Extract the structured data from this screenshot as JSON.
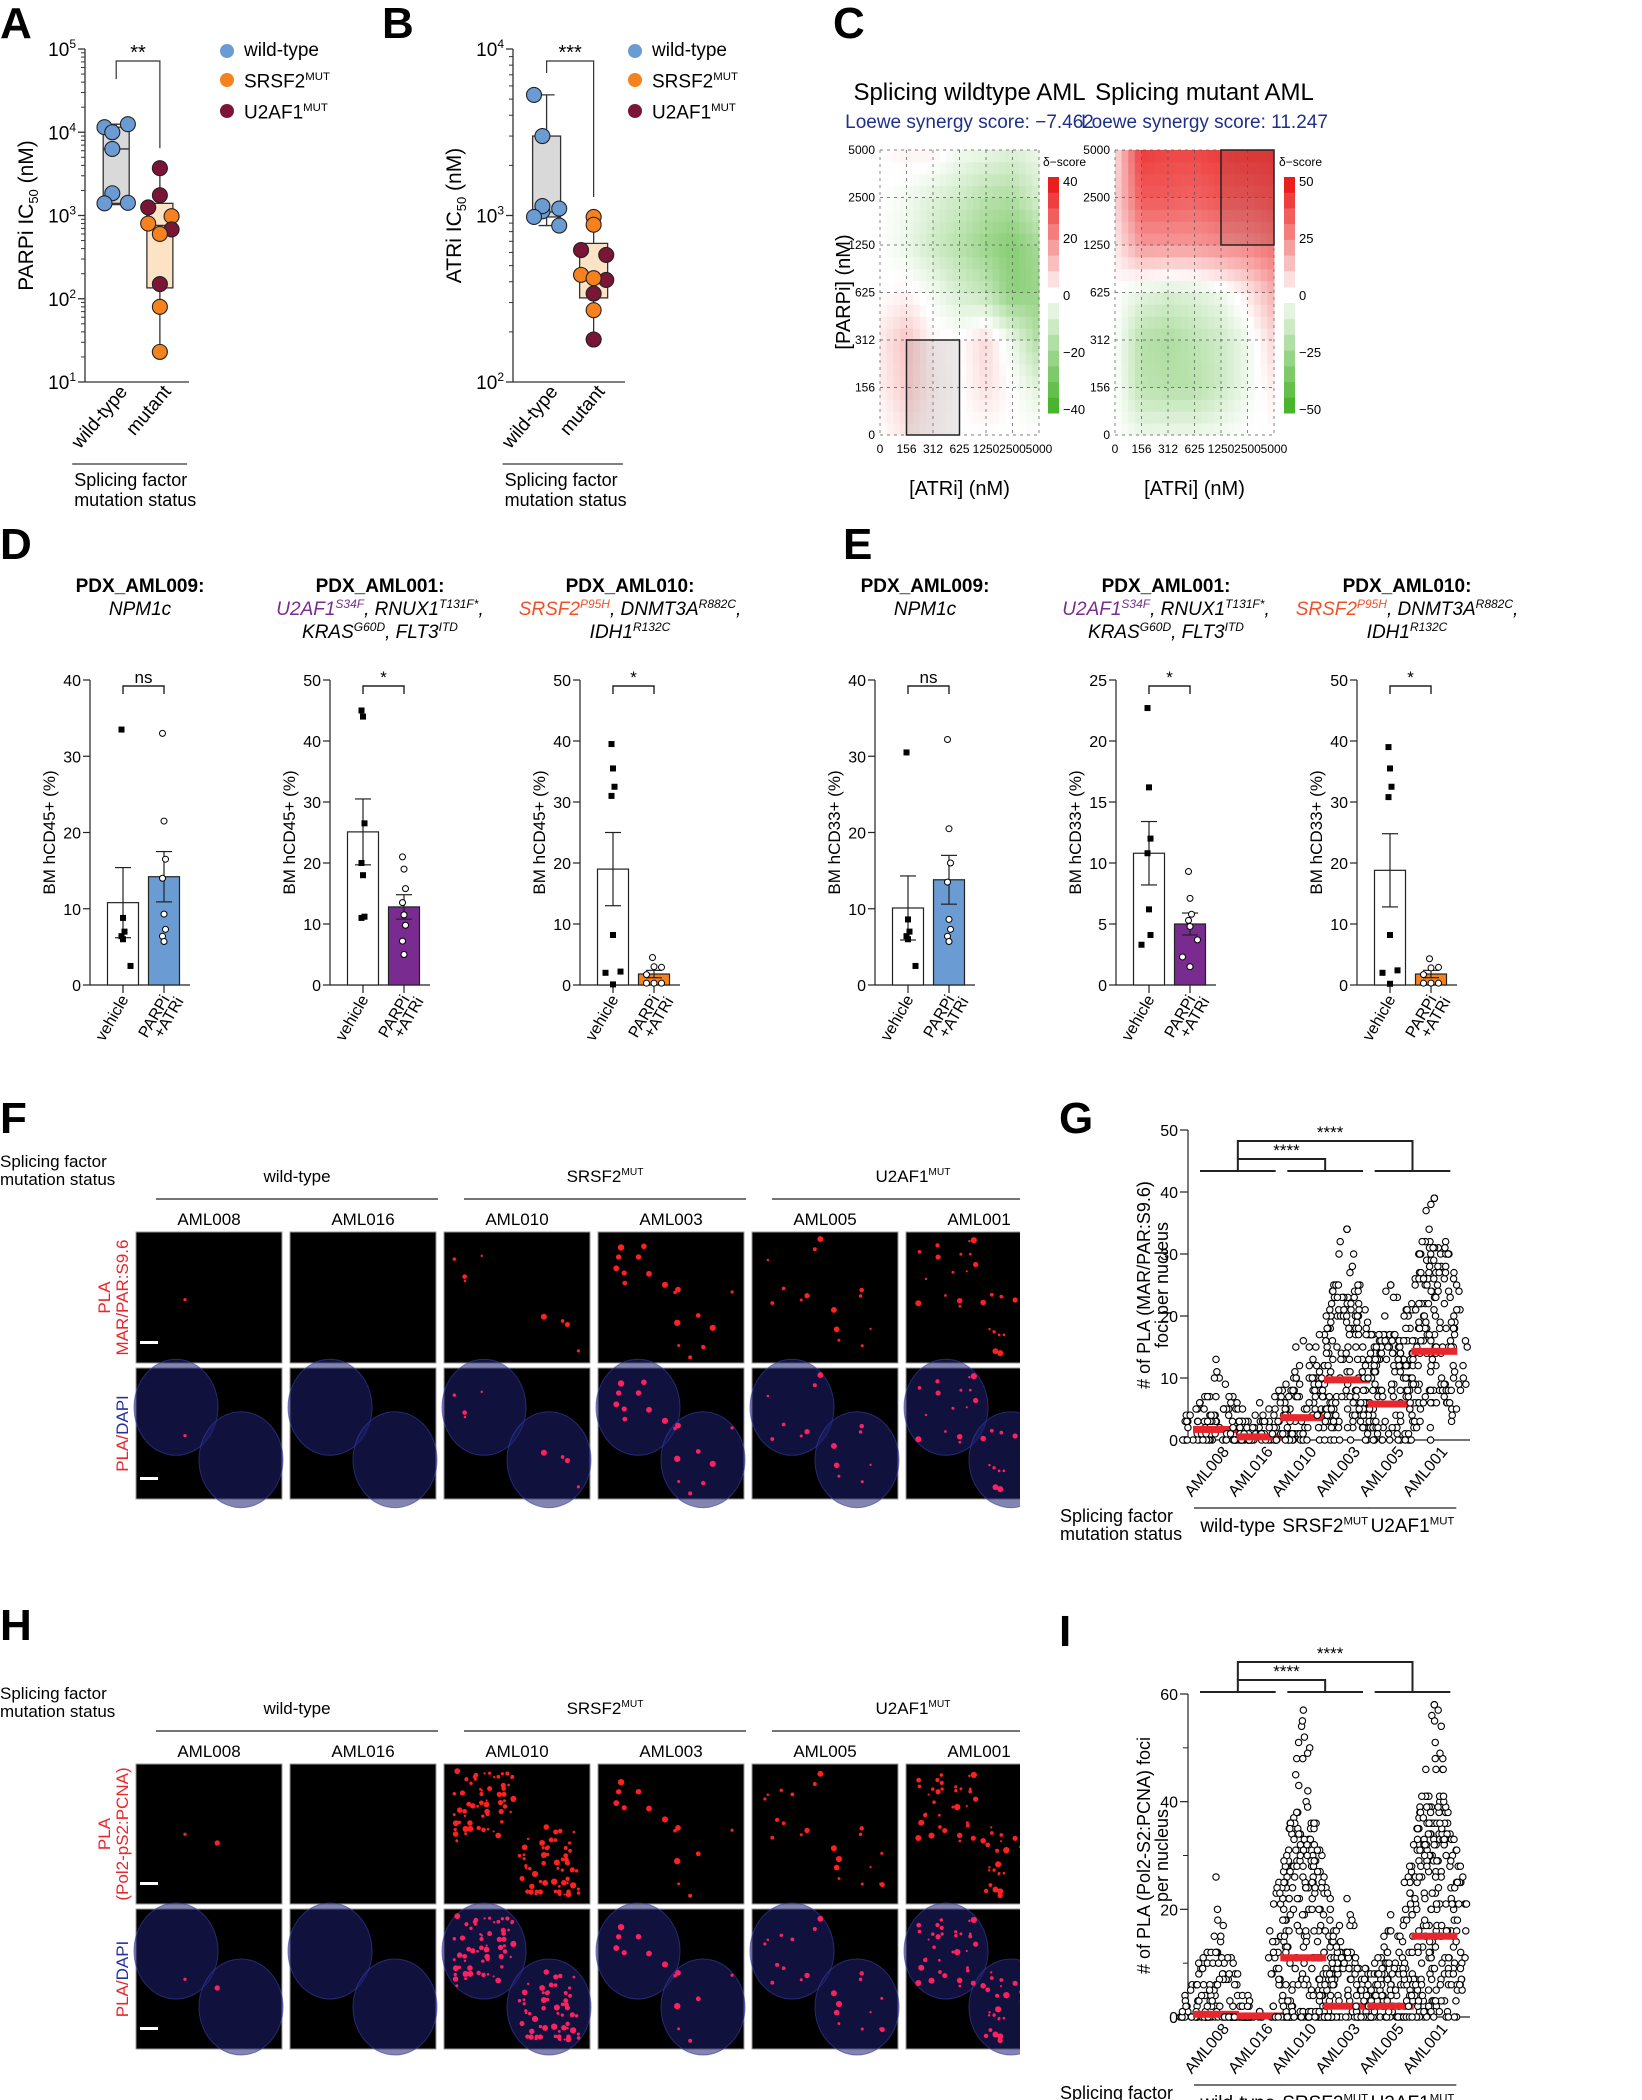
{
  "panels": {
    "A": "A",
    "B": "B",
    "C": "C",
    "D": "D",
    "E": "E",
    "F": "F",
    "G": "G",
    "H": "H",
    "I": "I"
  },
  "legend": {
    "items": [
      {
        "label": "wild-type",
        "sup": "",
        "color": "#6a9bd3"
      },
      {
        "label": "SRSF2",
        "sup": "MUT",
        "color": "#f5821f"
      },
      {
        "label": "U2AF1",
        "sup": "MUT",
        "color": "#7b1535"
      }
    ]
  },
  "common": {
    "splicing_status_line1": "Splicing factor",
    "splicing_status_line2": "mutation status",
    "wild_type": "wild-type",
    "mutant": "mutant",
    "srsf2": "SRSF2",
    "u2af1": "U2AF1",
    "mut_sup": "MUT",
    "vehicle": "vehicle",
    "parpi": "PARPi",
    "atri": "+ATRi"
  },
  "chart_data": [
    {
      "id": "A",
      "type": "box",
      "ylabel": "PARPi IC50 (nM)",
      "yscale": "log",
      "ylim": [
        10,
        100000
      ],
      "yticks": [
        "10^1",
        "10^2",
        "10^3",
        "10^4",
        "10^5"
      ],
      "categories": [
        "wild-type",
        "mutant"
      ],
      "xgroup_label": "Splicing factor mutation status",
      "significance": "**",
      "boxes": [
        {
          "category": "wild-type",
          "min": 1350,
          "q1": 1400,
          "median": 6300,
          "q3": 11500,
          "max": 12500,
          "fill": "#d9d9d9"
        },
        {
          "category": "mutant",
          "min": 23,
          "q1": 135,
          "median": 760,
          "q3": 1400,
          "max": 3700,
          "fill": "#fde3c6"
        }
      ],
      "points": [
        {
          "category": "wild-type",
          "group": "wild-type",
          "value": 11500
        },
        {
          "category": "wild-type",
          "group": "wild-type",
          "value": 10000
        },
        {
          "category": "wild-type",
          "group": "wild-type",
          "value": 12500
        },
        {
          "category": "wild-type",
          "group": "wild-type",
          "value": 6300
        },
        {
          "category": "wild-type",
          "group": "wild-type",
          "value": 1850
        },
        {
          "category": "wild-type",
          "group": "wild-type",
          "value": 1400
        },
        {
          "category": "wild-type",
          "group": "wild-type",
          "value": 1420
        },
        {
          "category": "mutant",
          "group": "U2AF1",
          "value": 3700
        },
        {
          "category": "mutant",
          "group": "U2AF1",
          "value": 1750
        },
        {
          "category": "mutant",
          "group": "U2AF1",
          "value": 1250
        },
        {
          "category": "mutant",
          "group": "SRSF2",
          "value": 980
        },
        {
          "category": "mutant",
          "group": "SRSF2",
          "value": 800
        },
        {
          "category": "mutant",
          "group": "U2AF1",
          "value": 680
        },
        {
          "category": "mutant",
          "group": "SRSF2",
          "value": 600
        },
        {
          "category": "mutant",
          "group": "U2AF1",
          "value": 150
        },
        {
          "category": "mutant",
          "group": "SRSF2",
          "value": 80
        },
        {
          "category": "mutant",
          "group": "SRSF2",
          "value": 23
        }
      ]
    },
    {
      "id": "B",
      "type": "box",
      "ylabel": "ATRi IC50 (nM)",
      "yscale": "log",
      "ylim": [
        100,
        10000
      ],
      "yticks": [
        "10^2",
        "10^3",
        "10^4"
      ],
      "categories": [
        "wild-type",
        "mutant"
      ],
      "xgroup_label": "Splicing factor mutation status",
      "significance": "***",
      "boxes": [
        {
          "category": "wild-type",
          "min": 870,
          "q1": 980,
          "median": 1050,
          "q3": 3000,
          "max": 5300,
          "fill": "#d9d9d9"
        },
        {
          "category": "mutant",
          "min": 180,
          "q1": 320,
          "median": 420,
          "q3": 680,
          "max": 980,
          "fill": "#fde3c6"
        }
      ],
      "points": [
        {
          "category": "wild-type",
          "group": "wild-type",
          "value": 5300
        },
        {
          "category": "wild-type",
          "group": "wild-type",
          "value": 3000
        },
        {
          "category": "wild-type",
          "group": "wild-type",
          "value": 1100
        },
        {
          "category": "wild-type",
          "group": "wild-type",
          "value": 1060
        },
        {
          "category": "wild-type",
          "group": "wild-type",
          "value": 1140
        },
        {
          "category": "wild-type",
          "group": "wild-type",
          "value": 980
        },
        {
          "category": "wild-type",
          "group": "wild-type",
          "value": 870
        },
        {
          "category": "mutant",
          "group": "SRSF2",
          "value": 980
        },
        {
          "category": "mutant",
          "group": "SRSF2",
          "value": 880
        },
        {
          "category": "mutant",
          "group": "U2AF1",
          "value": 620
        },
        {
          "category": "mutant",
          "group": "U2AF1",
          "value": 580
        },
        {
          "category": "mutant",
          "group": "SRSF2",
          "value": 440
        },
        {
          "category": "mutant",
          "group": "U2AF1",
          "value": 410
        },
        {
          "category": "mutant",
          "group": "SRSF2",
          "value": 420
        },
        {
          "category": "mutant",
          "group": "U2AF1",
          "value": 340
        },
        {
          "category": "mutant",
          "group": "SRSF2",
          "value": 270
        },
        {
          "category": "mutant",
          "group": "U2AF1",
          "value": 180
        }
      ]
    },
    {
      "id": "C1",
      "type": "heatmap",
      "title": "Splicing wildtype AML",
      "subtitle": "Loewe synergy score: −7.462",
      "xlabel": "[ATRi] (nM)",
      "ylabel": "[PARPi] (nM)",
      "xticks": [
        "0",
        "156",
        "312",
        "625",
        "1250",
        "2500",
        "5000"
      ],
      "yticks": [
        "0",
        "156",
        "312",
        "625",
        "1250",
        "2500",
        "5000"
      ],
      "colorbar_title": "δ−score",
      "colorbar_ticks": [
        40,
        20,
        0,
        -20,
        -40
      ],
      "colorbar_range": [
        -45,
        45
      ],
      "values": [
        [
          0,
          5,
          2,
          0,
          0,
          0,
          0
        ],
        [
          3,
          10,
          3,
          0,
          6,
          0,
          -8
        ],
        [
          4,
          12,
          2,
          0,
          8,
          -5,
          -20
        ],
        [
          0,
          2,
          -3,
          -10,
          -15,
          -28,
          -25
        ],
        [
          0,
          -5,
          -12,
          -18,
          -25,
          -30,
          -22
        ],
        [
          0,
          -3,
          -8,
          -12,
          -18,
          -20,
          -10
        ],
        [
          0,
          3,
          3,
          -3,
          -5,
          -8,
          -5
        ]
      ],
      "highlight_box": {
        "x": [
          "156",
          "625"
        ],
        "y": [
          "0",
          "312"
        ]
      }
    },
    {
      "id": "C2",
      "type": "heatmap",
      "title": "Splicing mutant AML",
      "subtitle": "Loewe synergy score: 11.247",
      "xlabel": "[ATRi] (nM)",
      "ylabel": "[PARPi] (nM)",
      "xticks": [
        "0",
        "156",
        "312",
        "625",
        "1250",
        "2500",
        "5000"
      ],
      "yticks": [
        "0",
        "156",
        "312",
        "625",
        "1250",
        "2500",
        "5000"
      ],
      "colorbar_title": "δ−score",
      "colorbar_ticks": [
        50,
        25,
        0,
        -25,
        -50
      ],
      "colorbar_range": [
        -55,
        55
      ],
      "values": [
        [
          0,
          -5,
          -5,
          -5,
          -3,
          0,
          0
        ],
        [
          0,
          -20,
          -22,
          -22,
          -15,
          -5,
          5
        ],
        [
          0,
          -22,
          -25,
          -20,
          -15,
          -5,
          10
        ],
        [
          0,
          -8,
          -12,
          -10,
          -5,
          5,
          20
        ],
        [
          5,
          25,
          25,
          25,
          28,
          30,
          35
        ],
        [
          10,
          40,
          40,
          38,
          42,
          42,
          45
        ],
        [
          8,
          48,
          45,
          45,
          48,
          50,
          50
        ]
      ],
      "highlight_box": {
        "x": [
          "1250",
          "5000"
        ],
        "y": [
          "1250",
          "5000"
        ]
      }
    },
    {
      "id": "D1",
      "type": "bar",
      "title": "PDX_AML009:",
      "genotype": [
        {
          "text": "NPM1c",
          "sup": "",
          "color": "#000"
        }
      ],
      "ylabel": "BM hCD45+ (%)",
      "ylim": [
        0,
        40
      ],
      "yticks": [
        0,
        10,
        20,
        30,
        40
      ],
      "categories": [
        "vehicle",
        "PARPi +ATRi"
      ],
      "significance": "ns",
      "bars": [
        {
          "mean": 10.8,
          "sem": 4.6,
          "color": "#ffffff"
        },
        {
          "mean": 14.2,
          "sem": 3.3,
          "color": "#6a9bd3"
        }
      ],
      "points": [
        [
          33.5,
          8.8,
          7.0,
          6.4,
          6.0,
          2.5
        ],
        [
          33.0,
          21.5,
          16.5,
          14.0,
          9.3,
          7.3,
          6.4,
          5.7
        ]
      ]
    },
    {
      "id": "D2",
      "type": "bar",
      "title": "PDX_AML001:",
      "ylabel": "BM hCD45+ (%)",
      "ylim": [
        0,
        50
      ],
      "yticks": [
        0,
        10,
        20,
        30,
        40,
        50
      ],
      "categories": [
        "vehicle",
        "PARPi +ATRi"
      ],
      "significance": "*",
      "bars": [
        {
          "mean": 25.1,
          "sem": 5.4,
          "color": "#ffffff"
        },
        {
          "mean": 12.8,
          "sem": 2.0,
          "color": "#7a2b8f"
        }
      ],
      "points": [
        [
          45.0,
          44.0,
          26.5,
          20.0,
          18.0,
          11.2,
          11.0
        ],
        [
          21.0,
          19.0,
          15.8,
          13.5,
          11.5,
          9.8,
          7.2,
          5.0
        ]
      ]
    },
    {
      "id": "D3",
      "type": "bar",
      "title": "PDX_AML010:",
      "ylabel": "BM hCD45+ (%)",
      "ylim": [
        0,
        50
      ],
      "yticks": [
        0,
        10,
        20,
        30,
        40,
        50
      ],
      "categories": [
        "vehicle",
        "PARPi +ATRi"
      ],
      "significance": "*",
      "bars": [
        {
          "mean": 19.0,
          "sem": 6.0,
          "color": "#ffffff"
        },
        {
          "mean": 1.8,
          "sem": 0.6,
          "color": "#f5821f"
        }
      ],
      "points": [
        [
          39.5,
          35.5,
          32.5,
          31.0,
          8.2,
          2.2,
          2.0,
          0.1
        ],
        [
          4.5,
          3.0,
          2.9,
          1.7,
          0.3,
          0.3,
          0.3
        ]
      ]
    },
    {
      "id": "E1",
      "type": "bar",
      "title": "PDX_AML009:",
      "ylabel": "BM hCD33+ (%)",
      "ylim": [
        0,
        40
      ],
      "yticks": [
        0,
        10,
        20,
        30,
        40
      ],
      "categories": [
        "vehicle",
        "PARPi +ATRi"
      ],
      "significance": "ns",
      "bars": [
        {
          "mean": 10.1,
          "sem": 4.2,
          "color": "#ffffff"
        },
        {
          "mean": 13.8,
          "sem": 3.2,
          "color": "#6a9bd3"
        }
      ],
      "points": [
        [
          30.5,
          8.6,
          7.0,
          6.4,
          6.0,
          2.5
        ],
        [
          32.2,
          20.5,
          16.0,
          13.5,
          8.6,
          7.3,
          6.4,
          5.7
        ]
      ]
    },
    {
      "id": "E2",
      "type": "bar",
      "title": "PDX_AML001:",
      "ylabel": "BM hCD33+ (%)",
      "ylim": [
        0,
        25
      ],
      "yticks": [
        0,
        5,
        10,
        15,
        20,
        25
      ],
      "categories": [
        "vehicle",
        "PARPi +ATRi"
      ],
      "significance": "*",
      "bars": [
        {
          "mean": 10.8,
          "sem": 2.6,
          "color": "#ffffff"
        },
        {
          "mean": 5.0,
          "sem": 0.9,
          "color": "#7a2b8f"
        }
      ],
      "points": [
        [
          22.7,
          16.2,
          12.0,
          10.8,
          6.2,
          4.1,
          3.3
        ],
        [
          9.3,
          7.1,
          5.8,
          5.3,
          4.8,
          3.7,
          2.3,
          1.5
        ]
      ]
    },
    {
      "id": "E3",
      "type": "bar",
      "title": "PDX_AML010:",
      "ylabel": "BM hCD33+ (%)",
      "ylim": [
        0,
        50
      ],
      "yticks": [
        0,
        10,
        20,
        30,
        40,
        50
      ],
      "categories": [
        "vehicle",
        "PARPi +ATRi"
      ],
      "significance": "*",
      "bars": [
        {
          "mean": 18.8,
          "sem": 6.0,
          "color": "#ffffff"
        },
        {
          "mean": 1.8,
          "sem": 0.6,
          "color": "#f5821f"
        }
      ],
      "points": [
        [
          39.0,
          35.5,
          32.5,
          30.8,
          8.2,
          2.4,
          2.0,
          0.2
        ],
        [
          4.3,
          2.8,
          2.9,
          1.7,
          0.3,
          0.3,
          0.3
        ]
      ]
    },
    {
      "id": "G",
      "type": "scatter",
      "ylabel_line1": "# of PLA (MAR/PAR:S9.6)",
      "ylabel_line2": "foci per nucleus",
      "ylim": [
        0,
        50
      ],
      "yticks": [
        0,
        10,
        20,
        30,
        40,
        50
      ],
      "categories": [
        "AML008",
        "AML016",
        "AML010",
        "AML003",
        "AML005",
        "AML001"
      ],
      "groups": [
        {
          "label": "wild-type",
          "sup": "",
          "members": [
            0,
            1
          ]
        },
        {
          "label": "SRSF2",
          "sup": "MUT",
          "members": [
            2,
            3
          ]
        },
        {
          "label": "U2AF1",
          "sup": "MUT",
          "members": [
            4,
            5
          ]
        }
      ],
      "medians": [
        1.7,
        0.5,
        3.6,
        9.7,
        5.8,
        14.3
      ],
      "max_values": [
        13,
        6,
        16,
        34,
        25,
        39
      ],
      "significance": [
        {
          "from": "wild-type",
          "to": "SRSF2",
          "label": "****"
        },
        {
          "from": "wild-type",
          "to": "U2AF1",
          "label": "****"
        }
      ]
    },
    {
      "id": "I",
      "type": "scatter",
      "ylabel_line1": "# of PLA (Pol2-S2:PCNA) foci",
      "ylabel_line2": "per nucleus",
      "ylim": [
        0,
        60
      ],
      "yticks": [
        0,
        20,
        40,
        60
      ],
      "categories": [
        "AML008",
        "AML016",
        "AML010",
        "AML003",
        "AML005",
        "AML001"
      ],
      "groups": [
        {
          "label": "wild-type",
          "sup": "",
          "members": [
            0,
            1
          ]
        },
        {
          "label": "SRSF2",
          "sup": "MUT",
          "members": [
            2,
            3
          ]
        },
        {
          "label": "U2AF1",
          "sup": "MUT",
          "members": [
            4,
            5
          ]
        }
      ],
      "medians": [
        0.5,
        0.2,
        11.0,
        2.0,
        2.0,
        15.0
      ],
      "max_values": [
        26,
        1,
        57,
        22,
        19,
        58
      ],
      "significance": [
        {
          "from": "wild-type",
          "to": "SRSF2",
          "label": "****"
        },
        {
          "from": "wild-type",
          "to": "U2AF1",
          "label": "****"
        }
      ]
    }
  ],
  "genotypes": {
    "D1": [
      {
        "text": "NPM1c",
        "sup": "",
        "color": "#000000"
      }
    ],
    "D2_line1": [
      {
        "text": "U2AF1",
        "sup": "S34F",
        "color": "#7a2b8f"
      },
      {
        "text": ", RNUX1",
        "sup": "T131F*",
        "color": "#000000"
      },
      {
        "text": ",",
        "sup": "",
        "color": "#000000"
      }
    ],
    "D2_line2": [
      {
        "text": "KRAS",
        "sup": "G60D",
        "color": "#000000"
      },
      {
        "text": ", FLT3",
        "sup": "ITD",
        "color": "#000000"
      }
    ],
    "D3_line1": [
      {
        "text": "SRSF2",
        "sup": "P95H",
        "color": "#f0502a"
      },
      {
        "text": ", DNMT3A",
        "sup": "R882C",
        "color": "#000000"
      },
      {
        "text": ",",
        "sup": "",
        "color": "#000000"
      }
    ],
    "D3_line2": [
      {
        "text": "IDH1",
        "sup": "R132C",
        "color": "#000000"
      }
    ]
  },
  "microscopy": {
    "F": {
      "groups": [
        {
          "label": "wild-type",
          "sup": ""
        },
        {
          "label": "SRSF2",
          "sup": "MUT"
        },
        {
          "label": "U2AF1",
          "sup": "MUT"
        }
      ],
      "samples": [
        "AML008",
        "AML016",
        "AML010",
        "AML003",
        "AML005",
        "AML001"
      ],
      "row1_label_a": "PLA",
      "row1_label_b": "MAR/PAR:S9.6",
      "row2_label_a": "PLA/",
      "row2_label_b": "DAPI",
      "foci_counts": [
        1,
        0,
        8,
        18,
        14,
        30
      ]
    },
    "H": {
      "groups": [
        {
          "label": "wild-type",
          "sup": ""
        },
        {
          "label": "SRSF2",
          "sup": "MUT"
        },
        {
          "label": "U2AF1",
          "sup": "MUT"
        }
      ],
      "samples": [
        "AML008",
        "AML016",
        "AML010",
        "AML003",
        "AML005",
        "AML001"
      ],
      "row1_label_a": "PLA",
      "row1_label_b": "(Pol2-pS2:PCNA)",
      "row2_label_a": "PLA/",
      "row2_label_b": "DAPI",
      "foci_counts": [
        2,
        0,
        120,
        14,
        22,
        70
      ]
    }
  }
}
